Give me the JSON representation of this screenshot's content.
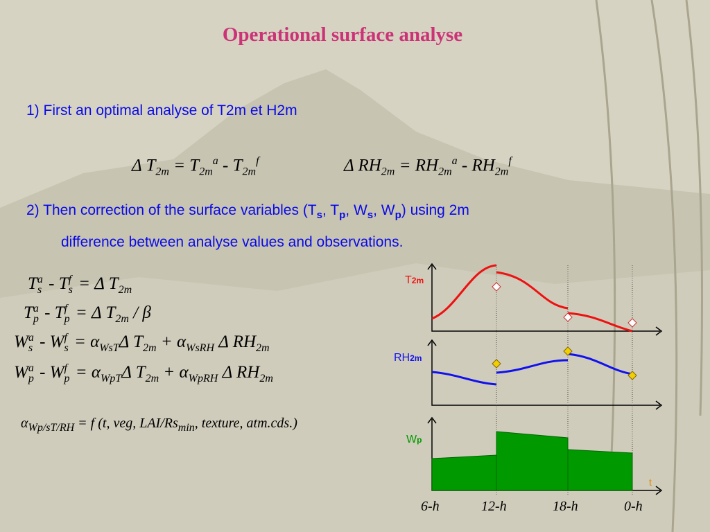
{
  "title": "Operational surface analyse",
  "step1": "1) First an optimal analyse of T2m et H2m",
  "eq_delta_t": [
    "Δ T",
    "2m",
    " = T",
    "2m",
    "a",
    " - T",
    "2m",
    "f"
  ],
  "eq_delta_rh": [
    "Δ RH",
    "2m",
    " = RH",
    "2m",
    "a",
    " - RH",
    "2m",
    "f"
  ],
  "step2": [
    "2) Then correction of the surface variables (T",
    "s",
    ", T",
    "p",
    ", W",
    "s",
    ", W",
    "p",
    ") using 2m",
    "difference between analyse values and observations."
  ],
  "equations": [
    [
      "T",
      "s",
      "a",
      " - T",
      "s",
      "f",
      " = Δ T",
      "2m"
    ],
    [
      "T",
      "p",
      "a",
      " - T",
      "p",
      "f",
      " = Δ T",
      "2m",
      " / β"
    ],
    [
      "W",
      "s",
      "a",
      " - W",
      "s",
      "f",
      " = α",
      "WsT",
      "Δ T",
      "2m",
      " + α",
      "WsRH",
      " Δ RH",
      "2m"
    ],
    [
      "W",
      "p",
      "a",
      " - W",
      "p",
      "f",
      " = α",
      "WpT",
      "Δ T",
      "2m",
      " + α",
      "WpRH",
      " Δ RH",
      "2m"
    ]
  ],
  "alpha_def": [
    "α",
    "Wp/sT/RH",
    " = f (t, veg, LAI/Rs",
    "min",
    ", texture, atm.cds.)"
  ],
  "diagram": {
    "t2m_label": [
      "T",
      "2m"
    ],
    "rh2m_label": [
      "RH",
      "2m"
    ],
    "wp_label": [
      "W",
      "p"
    ],
    "time_axis": "t",
    "times": [
      "6-h",
      "12-h",
      "18-h",
      "0-h"
    ]
  }
}
